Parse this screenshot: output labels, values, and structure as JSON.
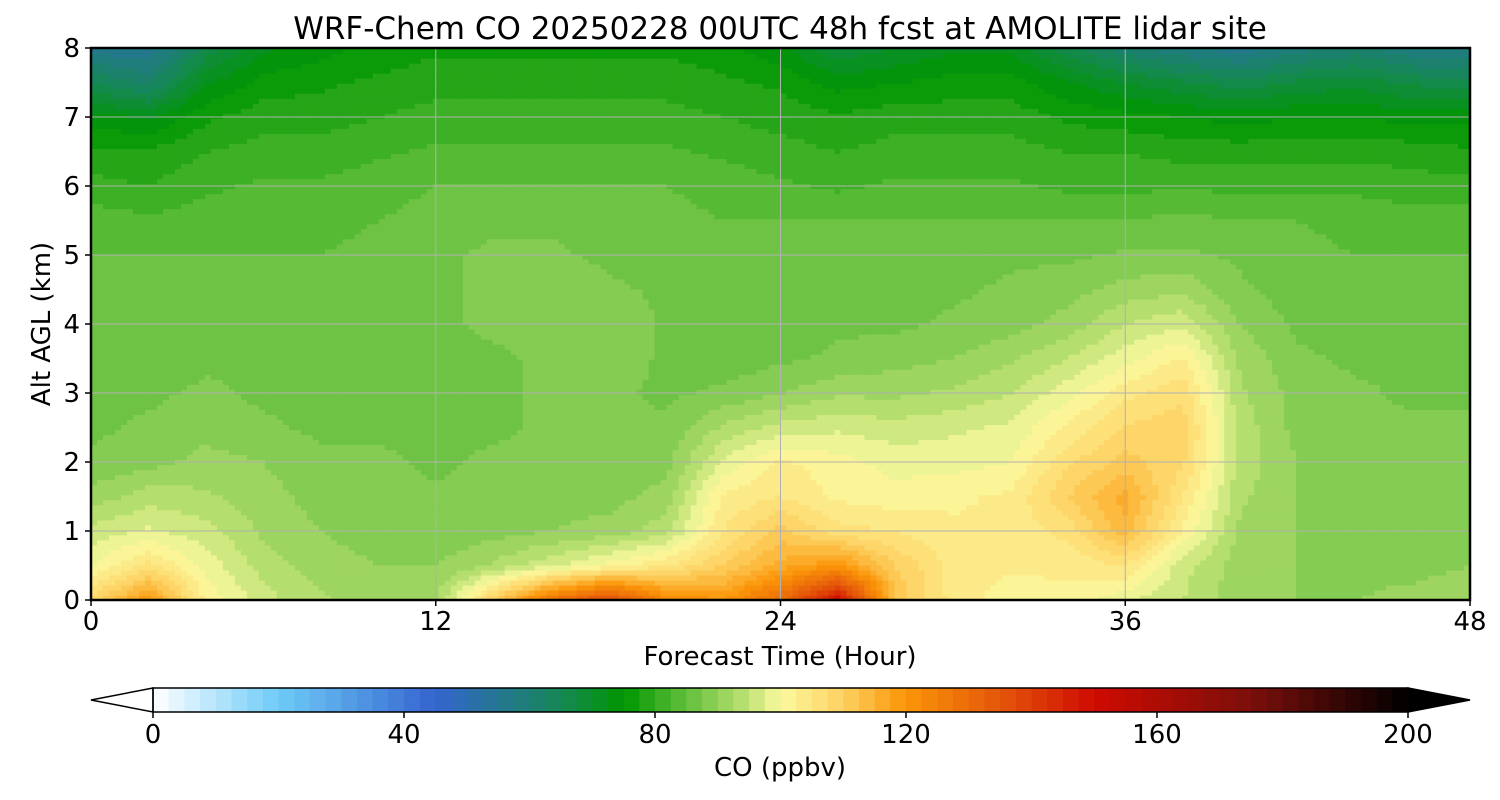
{
  "chart_data": {
    "type": "heatmap",
    "title": "WRF-Chem CO  20250228 00UTC 48h fcst at AMOLITE lidar site",
    "xlabel": "Forecast Time (Hour)",
    "ylabel": "Alt AGL (km)",
    "xlim": [
      0,
      48
    ],
    "ylim": [
      0,
      8
    ],
    "x_ticks": [
      0,
      12,
      24,
      36,
      48
    ],
    "y_ticks": [
      0,
      1,
      2,
      3,
      4,
      5,
      6,
      7,
      8
    ],
    "grid": true,
    "x": [
      0,
      2,
      4,
      6,
      8,
      10,
      12,
      14,
      16,
      18,
      20,
      22,
      24,
      26,
      28,
      30,
      32,
      34,
      36,
      38,
      40,
      42,
      44,
      46,
      48
    ],
    "y": [
      0,
      0.5,
      1,
      1.5,
      2,
      2.5,
      3,
      3.5,
      4,
      4.5,
      5,
      5.5,
      6,
      6.5,
      7,
      7.5,
      8
    ],
    "z": [
      [
        108,
        120,
        102,
        96,
        93,
        91,
        92,
        110,
        128,
        138,
        123,
        120,
        130,
        150,
        112,
        104,
        101,
        102,
        98,
        95,
        91,
        90,
        90,
        91,
        92
      ],
      [
        100,
        106,
        99,
        94,
        91,
        90,
        90,
        93,
        97,
        101,
        105,
        110,
        116,
        120,
        110,
        104,
        103,
        103,
        105,
        96,
        91,
        90,
        89,
        89,
        90
      ],
      [
        96,
        98,
        96,
        92,
        90,
        89,
        88,
        89,
        90,
        91,
        94,
        105,
        111,
        106,
        105,
        103,
        103,
        106,
        114,
        102,
        92,
        90,
        89,
        88,
        89
      ],
      [
        91,
        94,
        93,
        91,
        89,
        88,
        88,
        88,
        89,
        89,
        91,
        103,
        105,
        102,
        101,
        102,
        103,
        110,
        116,
        105,
        93,
        90,
        89,
        88,
        88
      ],
      [
        88,
        89,
        91,
        90,
        88,
        88,
        87,
        88,
        88,
        88,
        89,
        98,
        103,
        101,
        99,
        99,
        100,
        107,
        111,
        108,
        94,
        90,
        88,
        88,
        88
      ],
      [
        87,
        88,
        89,
        88,
        87,
        87,
        87,
        87,
        88,
        88,
        88,
        93,
        96,
        97,
        96,
        97,
        98,
        103,
        108,
        109,
        94,
        89,
        88,
        88,
        88
      ],
      [
        87,
        87,
        88,
        87,
        86,
        86,
        87,
        87,
        88,
        88,
        87,
        88,
        90,
        92,
        92,
        93,
        95,
        99,
        104,
        107,
        93,
        89,
        88,
        87,
        87
      ],
      [
        86,
        86,
        87,
        87,
        86,
        86,
        87,
        87,
        88,
        89,
        87,
        86,
        87,
        88,
        89,
        90,
        92,
        95,
        99,
        103,
        92,
        88,
        87,
        87,
        86
      ],
      [
        86,
        86,
        86,
        86,
        85,
        86,
        87,
        88,
        89,
        90,
        87,
        86,
        86,
        87,
        87,
        88,
        89,
        91,
        95,
        97,
        90,
        87,
        86,
        86,
        86
      ],
      [
        85,
        85,
        86,
        86,
        85,
        86,
        87,
        88,
        89,
        88,
        87,
        86,
        86,
        86,
        86,
        87,
        88,
        89,
        91,
        92,
        88,
        86,
        86,
        86,
        85
      ],
      [
        85,
        85,
        85,
        85,
        85,
        86,
        87,
        88,
        88,
        87,
        86,
        86,
        85,
        86,
        86,
        86,
        87,
        87,
        88,
        88,
        87,
        86,
        85,
        85,
        85
      ],
      [
        84,
        83,
        84,
        84,
        84,
        85,
        86,
        87,
        87,
        86,
        86,
        85,
        85,
        85,
        85,
        85,
        85,
        85,
        85,
        86,
        85,
        85,
        84,
        84,
        84
      ],
      [
        81,
        80,
        82,
        83,
        83,
        84,
        85,
        85,
        85,
        85,
        85,
        84,
        83,
        82,
        83,
        83,
        83,
        82,
        82,
        82,
        82,
        82,
        82,
        81,
        81
      ],
      [
        78,
        78,
        80,
        81,
        81,
        82,
        83,
        83,
        83,
        83,
        83,
        82,
        81,
        80,
        81,
        81,
        81,
        80,
        80,
        79,
        79,
        79,
        79,
        79,
        78
      ],
      [
        74,
        72,
        77,
        79,
        79,
        80,
        81,
        81,
        81,
        81,
        81,
        80,
        79,
        78,
        79,
        79,
        79,
        77,
        76,
        75,
        74,
        75,
        75,
        74,
        74
      ],
      [
        65,
        62,
        72,
        76,
        77,
        78,
        79,
        79,
        79,
        79,
        79,
        78,
        77,
        74,
        75,
        76,
        76,
        73,
        70,
        68,
        66,
        68,
        69,
        67,
        66
      ],
      [
        56,
        55,
        66,
        72,
        74,
        76,
        77,
        77,
        77,
        77,
        77,
        76,
        73,
        68,
        70,
        72,
        72,
        66,
        61,
        58,
        56,
        59,
        61,
        58,
        57
      ]
    ],
    "colorbar": {
      "label": "CO  (ppbv)",
      "vmin": 0,
      "vmax": 200,
      "step": 2.5,
      "ticks": [
        0,
        40,
        80,
        120,
        160,
        200
      ],
      "extend": "both",
      "colors": [
        {
          "v": 0,
          "c": "#ffffff"
        },
        {
          "v": 20,
          "c": "#6ecbf7"
        },
        {
          "v": 45,
          "c": "#3464cf"
        },
        {
          "v": 65,
          "c": "#168855"
        },
        {
          "v": 75,
          "c": "#009600"
        },
        {
          "v": 85,
          "c": "#62bf3d"
        },
        {
          "v": 95,
          "c": "#c0e275"
        },
        {
          "v": 100,
          "c": "#fcfaa0"
        },
        {
          "v": 110,
          "c": "#fdd060"
        },
        {
          "v": 120,
          "c": "#fb9508"
        },
        {
          "v": 135,
          "c": "#e4560a"
        },
        {
          "v": 150,
          "c": "#cf0b00"
        },
        {
          "v": 175,
          "c": "#7a0f0b"
        },
        {
          "v": 200,
          "c": "#000000"
        }
      ]
    }
  }
}
